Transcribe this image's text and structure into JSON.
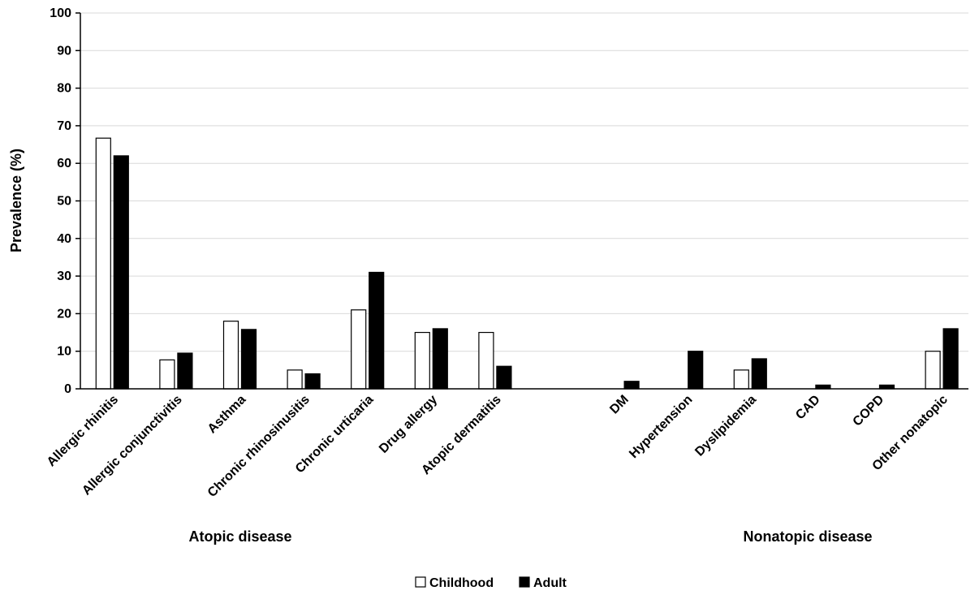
{
  "chart_data": {
    "type": "bar",
    "title": "",
    "ylabel": "Prevalence (%)",
    "ylim": [
      0,
      100
    ],
    "yticks": [
      0,
      10,
      20,
      30,
      40,
      50,
      60,
      70,
      80,
      90,
      100
    ],
    "grid": true,
    "legend_position": "bottom",
    "categories": [
      "Allergic rhinitis",
      "Allergic conjunctivitis",
      "Asthma",
      "Chronic rhinosinusitis",
      "Chronic urticaria",
      "Drug allergy",
      "Atopic dermatitis",
      "DM",
      "Hypertension",
      "Dyslipidemia",
      "CAD",
      "COPD",
      "Other nonatopic"
    ],
    "groups": [
      {
        "label": "Atopic disease",
        "categories": [
          "Allergic rhinitis",
          "Allergic conjunctivitis",
          "Asthma",
          "Chronic rhinosinusitis",
          "Chronic urticaria",
          "Drug allergy",
          "Atopic dermatitis"
        ]
      },
      {
        "label": "Nonatopic disease",
        "categories": [
          "DM",
          "Hypertension",
          "Dyslipidemia",
          "CAD",
          "COPD",
          "Other nonatopic"
        ]
      }
    ],
    "series": [
      {
        "name": "Childhood",
        "color": "#ffffff",
        "values": [
          66.7,
          7.7,
          18,
          5,
          21,
          15,
          15,
          0,
          0,
          5,
          0,
          0,
          10
        ]
      },
      {
        "name": "Adult",
        "color": "#000000",
        "values": [
          62,
          9.5,
          15.8,
          4,
          31,
          16,
          6,
          2,
          10,
          8,
          1,
          1,
          16
        ]
      }
    ]
  }
}
